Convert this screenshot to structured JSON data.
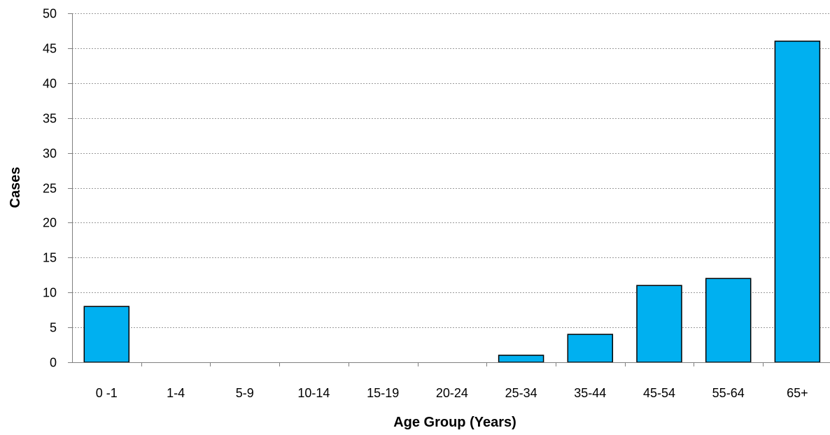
{
  "chart_data": {
    "type": "bar",
    "categories": [
      "0 -1",
      "1-4",
      "5-9",
      "10-14",
      "15-19",
      "20-24",
      "25-34",
      "35-44",
      "45-54",
      "55-64",
      "65+"
    ],
    "values": [
      8,
      0,
      0,
      0,
      0,
      0,
      1,
      4,
      11,
      12,
      46
    ],
    "xlabel": "Age Group (Years)",
    "ylabel": "Cases",
    "ylim": [
      0,
      50
    ],
    "yticks": [
      0,
      5,
      10,
      15,
      20,
      25,
      30,
      35,
      40,
      45,
      50
    ],
    "grid": true,
    "colors": {
      "bar": "#00b0f0",
      "bar_edge": "#000000"
    }
  }
}
